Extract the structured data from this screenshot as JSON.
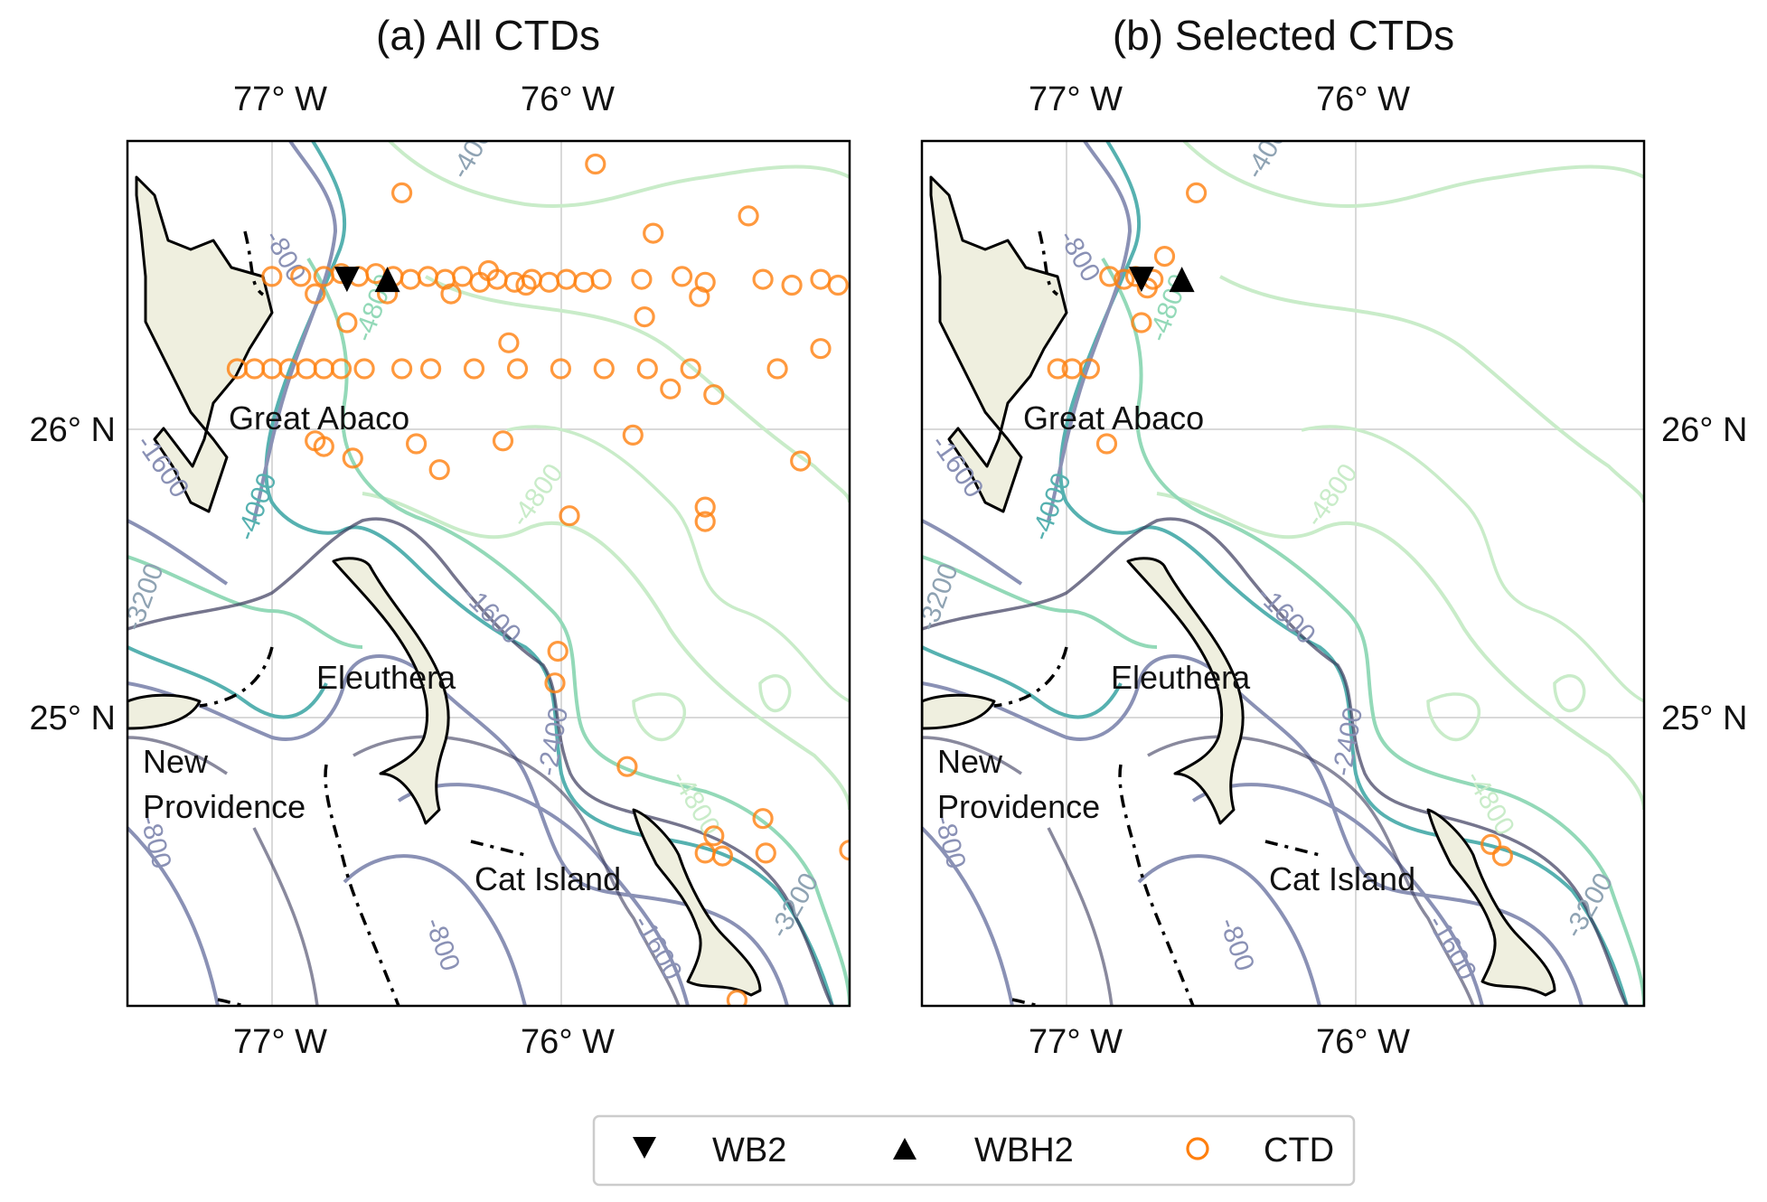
{
  "panels": [
    {
      "id": "a",
      "title": "(a) All CTDs",
      "top_ticks": [
        "77° W",
        "76° W"
      ],
      "bottom_ticks": [
        "77° W",
        "76° W"
      ],
      "lat_ticks": [
        "26° N",
        "25° N"
      ],
      "lat_tick_side": "left",
      "island_labels": [
        "Great Abaco",
        "Eleuthera",
        "New",
        "Providence",
        "Cat Island"
      ],
      "contour_labels": [
        "-400",
        "-800",
        "-800",
        "-1600",
        "-4000",
        "-4800",
        "-4800",
        "-3200",
        "-1600",
        "-2400",
        "-4800",
        "-3200",
        "-800",
        "-1600",
        "-800"
      ],
      "moorings": {
        "WB2": {
          "lon": -76.74,
          "lat": 26.52
        },
        "WBH2": {
          "lon": -76.6,
          "lat": 26.52
        }
      },
      "ctd_points": [
        {
          "lon": -75.88,
          "lat": 26.92
        },
        {
          "lon": -76.55,
          "lat": 26.82
        },
        {
          "lon": -75.68,
          "lat": 26.68
        },
        {
          "lon": -75.35,
          "lat": 26.74
        },
        {
          "lon": -77.0,
          "lat": 26.53
        },
        {
          "lon": -76.9,
          "lat": 26.53
        },
        {
          "lon": -76.82,
          "lat": 26.53
        },
        {
          "lon": -76.76,
          "lat": 26.54
        },
        {
          "lon": -76.7,
          "lat": 26.53
        },
        {
          "lon": -76.64,
          "lat": 26.54
        },
        {
          "lon": -76.58,
          "lat": 26.53
        },
        {
          "lon": -76.52,
          "lat": 26.52
        },
        {
          "lon": -76.46,
          "lat": 26.53
        },
        {
          "lon": -76.4,
          "lat": 26.52
        },
        {
          "lon": -76.34,
          "lat": 26.53
        },
        {
          "lon": -76.28,
          "lat": 26.51
        },
        {
          "lon": -76.22,
          "lat": 26.52
        },
        {
          "lon": -76.16,
          "lat": 26.51
        },
        {
          "lon": -76.1,
          "lat": 26.52
        },
        {
          "lon": -76.04,
          "lat": 26.51
        },
        {
          "lon": -75.98,
          "lat": 26.52
        },
        {
          "lon": -75.92,
          "lat": 26.51
        },
        {
          "lon": -75.86,
          "lat": 26.52
        },
        {
          "lon": -75.72,
          "lat": 26.52
        },
        {
          "lon": -75.58,
          "lat": 26.53
        },
        {
          "lon": -75.5,
          "lat": 26.51
        },
        {
          "lon": -75.3,
          "lat": 26.52
        },
        {
          "lon": -75.2,
          "lat": 26.5
        },
        {
          "lon": -75.1,
          "lat": 26.52
        },
        {
          "lon": -75.04,
          "lat": 26.5
        },
        {
          "lon": -76.25,
          "lat": 26.55
        },
        {
          "lon": -76.12,
          "lat": 26.5
        },
        {
          "lon": -76.85,
          "lat": 26.47
        },
        {
          "lon": -76.6,
          "lat": 26.47
        },
        {
          "lon": -76.38,
          "lat": 26.47
        },
        {
          "lon": -75.52,
          "lat": 26.46
        },
        {
          "lon": -76.74,
          "lat": 26.37
        },
        {
          "lon": -76.18,
          "lat": 26.3
        },
        {
          "lon": -75.71,
          "lat": 26.39
        },
        {
          "lon": -75.1,
          "lat": 26.28
        },
        {
          "lon": -77.12,
          "lat": 26.21
        },
        {
          "lon": -77.06,
          "lat": 26.21
        },
        {
          "lon": -77.0,
          "lat": 26.21
        },
        {
          "lon": -76.94,
          "lat": 26.21
        },
        {
          "lon": -76.88,
          "lat": 26.21
        },
        {
          "lon": -76.82,
          "lat": 26.21
        },
        {
          "lon": -76.76,
          "lat": 26.21
        },
        {
          "lon": -76.68,
          "lat": 26.21
        },
        {
          "lon": -76.55,
          "lat": 26.21
        },
        {
          "lon": -76.45,
          "lat": 26.21
        },
        {
          "lon": -76.3,
          "lat": 26.21
        },
        {
          "lon": -76.15,
          "lat": 26.21
        },
        {
          "lon": -76.0,
          "lat": 26.21
        },
        {
          "lon": -75.85,
          "lat": 26.21
        },
        {
          "lon": -75.7,
          "lat": 26.21
        },
        {
          "lon": -75.55,
          "lat": 26.21
        },
        {
          "lon": -75.25,
          "lat": 26.21
        },
        {
          "lon": -75.62,
          "lat": 26.14
        },
        {
          "lon": -75.47,
          "lat": 26.12
        },
        {
          "lon": -76.85,
          "lat": 25.96
        },
        {
          "lon": -76.82,
          "lat": 25.94
        },
        {
          "lon": -76.2,
          "lat": 25.96
        },
        {
          "lon": -75.75,
          "lat": 25.98
        },
        {
          "lon": -76.5,
          "lat": 25.95
        },
        {
          "lon": -76.72,
          "lat": 25.9
        },
        {
          "lon": -76.42,
          "lat": 25.86
        },
        {
          "lon": -75.17,
          "lat": 25.89
        },
        {
          "lon": -75.5,
          "lat": 25.73
        },
        {
          "lon": -75.5,
          "lat": 25.68
        },
        {
          "lon": -75.97,
          "lat": 25.7
        },
        {
          "lon": -76.01,
          "lat": 25.23
        },
        {
          "lon": -76.02,
          "lat": 25.12
        },
        {
          "lon": -75.77,
          "lat": 24.83
        },
        {
          "lon": -75.3,
          "lat": 24.65
        },
        {
          "lon": -75.47,
          "lat": 24.59
        },
        {
          "lon": -75.5,
          "lat": 24.53
        },
        {
          "lon": -75.44,
          "lat": 24.52
        },
        {
          "lon": -75.29,
          "lat": 24.53
        },
        {
          "lon": -75.0,
          "lat": 24.54
        },
        {
          "lon": -75.39,
          "lat": 24.02
        }
      ]
    },
    {
      "id": "b",
      "title": "(b) Selected CTDs",
      "top_ticks": [
        "77° W",
        "76° W"
      ],
      "bottom_ticks": [
        "77° W",
        "76° W"
      ],
      "lat_ticks": [
        "26° N",
        "25° N"
      ],
      "lat_tick_side": "right",
      "island_labels": [
        "Great Abaco",
        "Eleuthera",
        "New",
        "Providence",
        "Cat Island"
      ],
      "contour_labels": [
        "-400",
        "-800",
        "-800",
        "-1600",
        "-4000",
        "-4800",
        "-4800",
        "-3200",
        "-1600",
        "-2400",
        "-4800",
        "-3200",
        "-800",
        "-1600",
        "-800"
      ],
      "moorings": {
        "WB2": {
          "lon": -76.74,
          "lat": 26.52
        },
        "WBH2": {
          "lon": -76.6,
          "lat": 26.52
        }
      },
      "ctd_points": [
        {
          "lon": -76.55,
          "lat": 26.82
        },
        {
          "lon": -76.66,
          "lat": 26.6
        },
        {
          "lon": -76.85,
          "lat": 26.53
        },
        {
          "lon": -76.8,
          "lat": 26.52
        },
        {
          "lon": -76.76,
          "lat": 26.53
        },
        {
          "lon": -76.7,
          "lat": 26.52
        },
        {
          "lon": -76.72,
          "lat": 26.49
        },
        {
          "lon": -76.74,
          "lat": 26.37
        },
        {
          "lon": -77.03,
          "lat": 26.21
        },
        {
          "lon": -76.98,
          "lat": 26.21
        },
        {
          "lon": -76.92,
          "lat": 26.21
        },
        {
          "lon": -76.86,
          "lat": 25.95
        },
        {
          "lon": -75.53,
          "lat": 24.56
        },
        {
          "lon": -75.49,
          "lat": 24.52
        }
      ]
    }
  ],
  "legend": {
    "items": [
      {
        "label": "WB2",
        "marker": "triangle-down"
      },
      {
        "label": "WBH2",
        "marker": "triangle-up"
      },
      {
        "label": "CTD",
        "marker": "circle-open"
      }
    ]
  },
  "map_extent": {
    "lon_min": -77.5,
    "lon_max": -75.0,
    "lat_min": 24.0,
    "lat_max": 27.0
  },
  "colors": {
    "ctd": "#ff7f0e",
    "mooring": "#000000",
    "land": "#efefdf",
    "grid": "#d9d9d9"
  },
  "contour_colors": {
    "shallow": "#3b3a5c",
    "mid": "#8a91b5",
    "deep1": "#56b1b0",
    "deep2": "#93d9b8",
    "deepest": "#c9ecc9"
  }
}
